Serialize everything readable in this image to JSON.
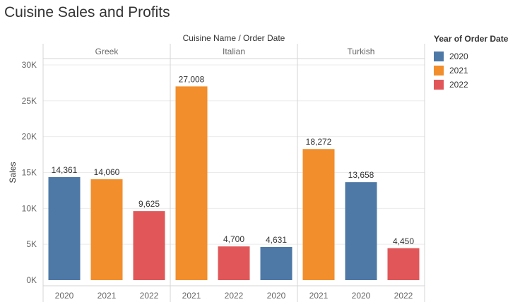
{
  "chart_data": {
    "type": "bar",
    "title": "Cuisine Sales and Profits",
    "header_label": "Cuisine Name  /  Order Date",
    "ylabel": "Sales",
    "ylim": [
      0,
      30000
    ],
    "yticks": [
      {
        "value": 0,
        "label": "0K"
      },
      {
        "value": 5000,
        "label": "5K"
      },
      {
        "value": 10000,
        "label": "10K"
      },
      {
        "value": 15000,
        "label": "15K"
      },
      {
        "value": 20000,
        "label": "20K"
      },
      {
        "value": 25000,
        "label": "25K"
      },
      {
        "value": 30000,
        "label": "30K"
      }
    ],
    "legend": {
      "title": "Year of Order Date",
      "placement": "right",
      "items": [
        {
          "label": "2020",
          "color": "#4e79a7"
        },
        {
          "label": "2021",
          "color": "#f28e2b"
        },
        {
          "label": "2022",
          "color": "#e15759"
        }
      ]
    },
    "panels": [
      {
        "name": "Greek",
        "bars": [
          {
            "year": "2020",
            "value": 14361,
            "label": "14,361"
          },
          {
            "year": "2021",
            "value": 14060,
            "label": "14,060"
          },
          {
            "year": "2022",
            "value": 9625,
            "label": "9,625"
          }
        ]
      },
      {
        "name": "Italian",
        "bars": [
          {
            "year": "2021",
            "value": 27008,
            "label": "27,008"
          },
          {
            "year": "2022",
            "value": 4700,
            "label": "4,700"
          },
          {
            "year": "2020",
            "value": 4631,
            "label": "4,631"
          }
        ]
      },
      {
        "name": "Turkish",
        "bars": [
          {
            "year": "2021",
            "value": 18272,
            "label": "18,272"
          },
          {
            "year": "2020",
            "value": 13658,
            "label": "13,658"
          },
          {
            "year": "2022",
            "value": 4450,
            "label": "4,450"
          }
        ]
      }
    ]
  }
}
